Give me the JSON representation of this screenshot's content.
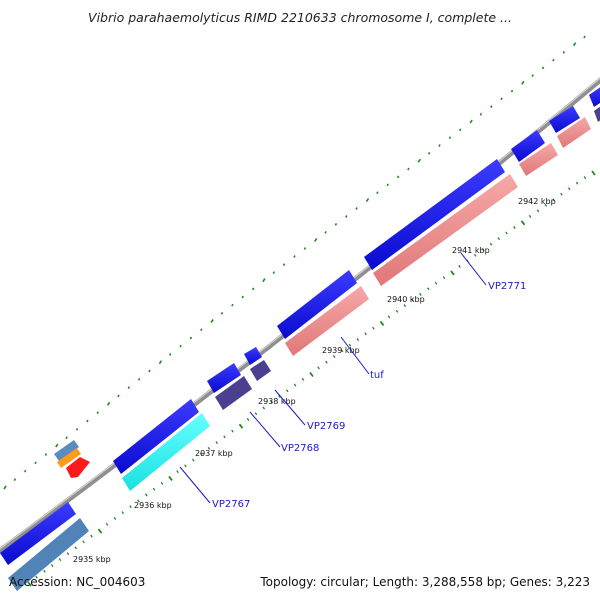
{
  "title": "Vibrio parahaemolyticus RIMD 2210633 chromosome I, complete ...",
  "footer": {
    "accession": "Accession: NC_004603",
    "stats": "Topology: circular; Length: 3,288,558 bp; Genes: 3,223"
  },
  "colors": {
    "backbone": "#8c8c8c",
    "tick": "#1f8a1f",
    "cds_forward": "#1414e6",
    "cds_reverse": "#f08c8c",
    "cds_dark": "#4a3d8f",
    "trna": "#33ffff",
    "cds_steel": "#4f82b8",
    "orange": "#ff9a1a",
    "red": "#ff1a1a",
    "label": "#1a1acc"
  },
  "ticks": [
    "2935 kbp",
    "2936 kbp",
    "2937 kbp",
    "2938 kbp",
    "2939 kbp",
    "2940 kbp",
    "2941 kbp",
    "2942 kbp"
  ],
  "genes": [
    "VP2767",
    "VP2768",
    "VP2769",
    "tuf",
    "VP2771"
  ]
}
